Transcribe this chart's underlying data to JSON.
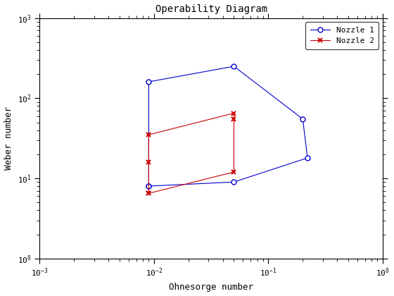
{
  "title": "Operability Diagram",
  "xlabel": "Ohnesorge number",
  "ylabel": "Weber number",
  "xlim": [
    0.001,
    1.0
  ],
  "ylim": [
    1.0,
    1000.0
  ],
  "nozzle1": {
    "Oh": [
      0.009,
      0.009,
      0.05,
      0.2,
      0.22,
      0.05,
      0.009
    ],
    "We": [
      8.0,
      160.0,
      250.0,
      55.0,
      18.0,
      9.0,
      8.0
    ],
    "color": "#0000cc",
    "marker": "o",
    "label": "Nozzle 1"
  },
  "nozzle2": {
    "Oh": [
      0.009,
      0.009,
      0.009,
      0.05,
      0.05,
      0.05,
      0.009
    ],
    "We": [
      6.5,
      16.0,
      35.0,
      65.0,
      55.0,
      12.0,
      6.5
    ],
    "color": "#cc0000",
    "marker": "x",
    "label": "Nozzle 2"
  },
  "background_color": "#ffffff",
  "legend_loc": "upper right",
  "figsize": [
    5.6,
    4.2
  ],
  "dpi": 100
}
